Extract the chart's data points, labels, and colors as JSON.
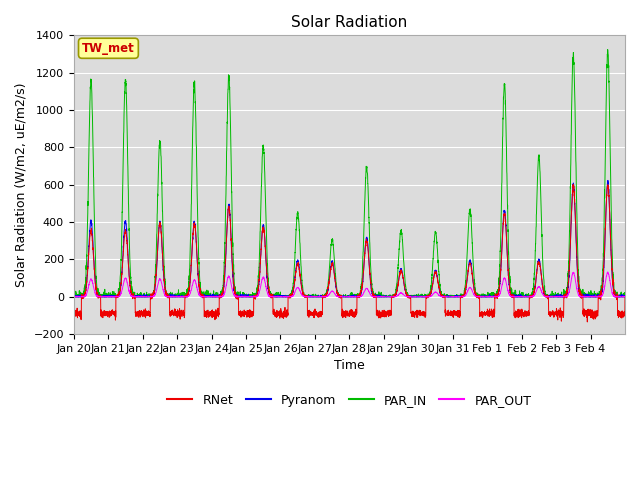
{
  "title": "Solar Radiation",
  "xlabel": "Time",
  "ylabel": "Solar Radiation (W/m2, uE/m2/s)",
  "ylim": [
    -200,
    1400
  ],
  "yticks": [
    -200,
    0,
    200,
    400,
    600,
    800,
    1000,
    1200,
    1400
  ],
  "x_tick_labels": [
    "Jan 20",
    "Jan 21",
    "Jan 22",
    "Jan 23",
    "Jan 24",
    "Jan 25",
    "Jan 26",
    "Jan 27",
    "Jan 28",
    "Jan 29",
    "Jan 30",
    "Jan 31",
    "Feb 1",
    "Feb 2",
    "Feb 3",
    "Feb 4"
  ],
  "legend_labels": [
    "RNet",
    "Pyranom",
    "PAR_IN",
    "PAR_OUT"
  ],
  "legend_colors": [
    "#ff0000",
    "#0000ff",
    "#00cc00",
    "#ff00ff"
  ],
  "annotation_text": "TW_met",
  "annotation_color": "#cc0000",
  "annotation_bg": "#ffff99",
  "title_fontsize": 11,
  "axis_fontsize": 9,
  "tick_fontsize": 8,
  "par_in_peaks": [
    1155,
    1155,
    830,
    1140,
    1180,
    810,
    450,
    305,
    695,
    355,
    345,
    465,
    1135,
    750,
    1295,
    1310,
    1325
  ],
  "pyranom_peaks": [
    405,
    405,
    400,
    400,
    490,
    385,
    195,
    190,
    315,
    150,
    140,
    195,
    460,
    200,
    600,
    615,
    630
  ],
  "rnet_peaks": [
    355,
    350,
    395,
    390,
    480,
    370,
    175,
    175,
    300,
    140,
    130,
    180,
    440,
    185,
    590,
    600,
    615
  ],
  "par_out_peaks": [
    95,
    100,
    95,
    90,
    110,
    105,
    50,
    30,
    45,
    20,
    25,
    50,
    100,
    55,
    130,
    130,
    140
  ],
  "rnet_night": -90,
  "par_out_night": 0,
  "pyranom_night": 0
}
